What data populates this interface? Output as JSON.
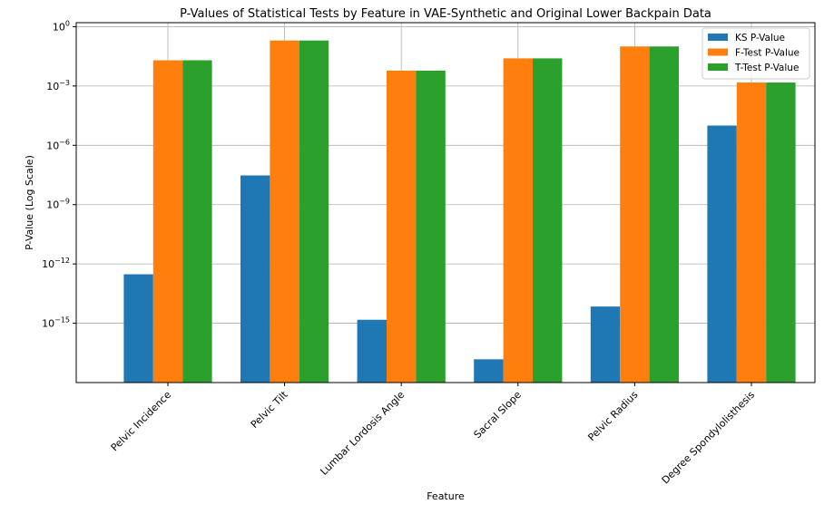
{
  "chart_data": {
    "type": "bar",
    "title": "P-Values of Statistical Tests by Feature in VAE-Synthetic and Original Lower Backpain Data",
    "xlabel": "Feature",
    "ylabel": "P-Value (Log Scale)",
    "yscale": "log",
    "ylim": [
      1e-18,
      1.6
    ],
    "yticks": [
      {
        "value": 1,
        "base": "10",
        "exp": "0"
      },
      {
        "value": 0.001,
        "base": "10",
        "exp": "−3"
      },
      {
        "value": 1e-06,
        "base": "10",
        "exp": "−6"
      },
      {
        "value": 1e-09,
        "base": "10",
        "exp": "−9"
      },
      {
        "value": 1e-12,
        "base": "10",
        "exp": "−12"
      },
      {
        "value": 1e-15,
        "base": "10",
        "exp": "−15"
      }
    ],
    "grid": true,
    "legend_position": "top-right",
    "categories": [
      "Pelvic Incidence",
      "Pelvic Tilt",
      "Lumbar Lordosis Angle",
      "Sacral Slope",
      "Pelvic Radius",
      "Degree Spondylolisthesis"
    ],
    "series": [
      {
        "name": "KS P-Value",
        "color": "#1f77b4",
        "values": [
          3e-13,
          3e-08,
          1.5e-15,
          1.5e-17,
          7e-15,
          1e-05
        ]
      },
      {
        "name": "F-Test P-Value",
        "color": "#ff7f0e",
        "values": [
          0.02,
          0.2,
          0.006,
          0.025,
          0.1,
          0.0015
        ]
      },
      {
        "name": "T-Test P-Value",
        "color": "#2ca02c",
        "values": [
          0.02,
          0.2,
          0.006,
          0.025,
          0.1,
          0.0015
        ]
      }
    ]
  }
}
